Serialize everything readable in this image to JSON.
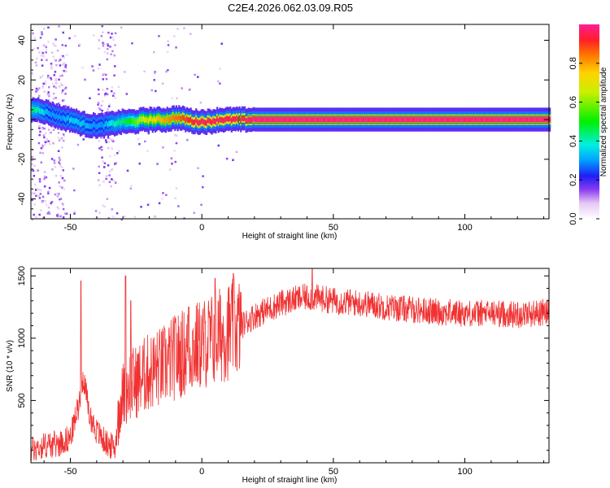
{
  "title": "C2E4.2026.062.03.09.R05",
  "chart_data": [
    {
      "type": "heatmap",
      "name": "spectrogram",
      "xlabel": "Height of straight line (km)",
      "ylabel": "Frequency (Hz)",
      "xlim": [
        -65,
        132
      ],
      "ylim": [
        -50,
        48
      ],
      "xticks": [
        -50,
        0,
        50,
        100
      ],
      "yticks": [
        -40,
        -20,
        0,
        20,
        40
      ],
      "colorbar": {
        "label": "Normalized spectral amplitude",
        "range": [
          0,
          1
        ],
        "ticks": [
          "0.0",
          "0.2",
          "0.4",
          "0.6",
          "0.8"
        ],
        "tick_values": [
          0.0,
          0.2,
          0.4,
          0.6,
          0.8
        ]
      },
      "ridge": {
        "x": [
          -65,
          -62,
          -58,
          -54,
          -50,
          -46,
          -42,
          -38,
          -34,
          -30,
          -26,
          -22,
          -18,
          -14,
          -10,
          -6,
          -3,
          0,
          3,
          6,
          10,
          14,
          20,
          40,
          60,
          80,
          100,
          132
        ],
        "freq": [
          5,
          5,
          3,
          1,
          0,
          -2,
          -3,
          -3,
          -2,
          -1,
          -1,
          0,
          0,
          0,
          1,
          0,
          -1,
          -1,
          -1,
          0,
          0,
          0,
          0,
          0,
          0,
          0,
          0,
          0
        ],
        "amplitude": [
          0.45,
          0.4,
          0.3,
          0.3,
          0.35,
          0.35,
          0.3,
          0.3,
          0.4,
          0.45,
          0.55,
          0.7,
          0.75,
          0.8,
          0.85,
          0.9,
          0.95,
          0.95,
          0.95,
          0.95,
          0.95,
          0.95,
          0.98,
          0.98,
          0.98,
          0.98,
          0.98,
          0.98
        ]
      }
    },
    {
      "type": "line",
      "name": "snr",
      "xlabel": "Height of straight line (km)",
      "ylabel": "SNR (10 * v/v)",
      "xlim": [
        -65,
        132
      ],
      "ylim": [
        0,
        1560
      ],
      "xticks": [
        -50,
        0,
        50,
        100
      ],
      "yticks": [
        500,
        1000,
        1500
      ],
      "color": "#f03232",
      "series": [
        {
          "name": "SNR",
          "x": [
            -65,
            -60,
            -55,
            -50,
            -47,
            -45,
            -43,
            -40,
            -36,
            -33,
            -31,
            -28,
            -25,
            -22,
            -18,
            -15,
            -10,
            -5,
            0,
            5,
            10,
            15,
            20,
            25,
            30,
            35,
            40,
            45,
            50,
            55,
            60,
            65,
            70,
            75,
            80,
            90,
            100,
            110,
            120,
            132
          ],
          "y": [
            100,
            140,
            150,
            200,
            450,
            700,
            400,
            250,
            150,
            120,
            500,
            620,
            650,
            700,
            750,
            770,
            850,
            900,
            950,
            1000,
            1060,
            1100,
            1180,
            1230,
            1280,
            1310,
            1330,
            1320,
            1300,
            1290,
            1280,
            1270,
            1250,
            1240,
            1230,
            1210,
            1200,
            1200,
            1190,
            1210
          ]
        }
      ],
      "spikes": [
        {
          "x": -46,
          "y": 1460
        },
        {
          "x": -29,
          "y": 1500
        },
        {
          "x": -27,
          "y": 1300
        },
        {
          "x": -10,
          "y": 1160
        },
        {
          "x": -5,
          "y": 1250
        },
        {
          "x": 5,
          "y": 1480
        },
        {
          "x": 12,
          "y": 1520
        },
        {
          "x": 42,
          "y": 1560
        }
      ]
    }
  ]
}
